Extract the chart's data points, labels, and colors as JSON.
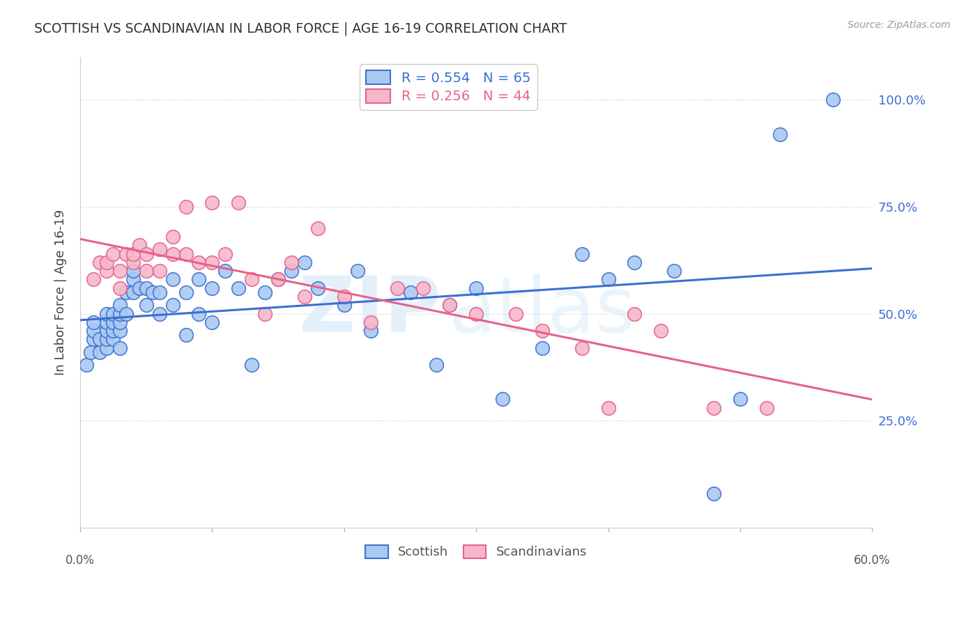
{
  "title": "SCOTTISH VS SCANDINAVIAN IN LABOR FORCE | AGE 16-19 CORRELATION CHART",
  "source": "Source: ZipAtlas.com",
  "ylabel": "In Labor Force | Age 16-19",
  "ytick_labels": [
    "25.0%",
    "50.0%",
    "75.0%",
    "100.0%"
  ],
  "ytick_values": [
    0.25,
    0.5,
    0.75,
    1.0
  ],
  "xmin": 0.0,
  "xmax": 0.6,
  "ymin": 0.0,
  "ymax": 1.1,
  "legend_blue_r": "0.554",
  "legend_blue_n": "65",
  "legend_pink_r": "0.256",
  "legend_pink_n": "44",
  "scatter_blue_color": "#aac9f0",
  "scatter_pink_color": "#f5b8ca",
  "line_blue_color": "#3b6fd4",
  "line_pink_color": "#e8608a",
  "scottish_x": [
    0.005,
    0.008,
    0.01,
    0.01,
    0.01,
    0.015,
    0.015,
    0.02,
    0.02,
    0.02,
    0.02,
    0.02,
    0.025,
    0.025,
    0.025,
    0.025,
    0.03,
    0.03,
    0.03,
    0.03,
    0.03,
    0.035,
    0.035,
    0.04,
    0.04,
    0.04,
    0.045,
    0.05,
    0.05,
    0.055,
    0.06,
    0.06,
    0.07,
    0.07,
    0.08,
    0.08,
    0.09,
    0.09,
    0.1,
    0.1,
    0.11,
    0.12,
    0.13,
    0.14,
    0.15,
    0.16,
    0.17,
    0.18,
    0.2,
    0.21,
    0.22,
    0.25,
    0.27,
    0.28,
    0.3,
    0.32,
    0.35,
    0.38,
    0.4,
    0.42,
    0.45,
    0.48,
    0.5,
    0.53,
    0.57
  ],
  "scottish_y": [
    0.38,
    0.41,
    0.44,
    0.46,
    0.48,
    0.41,
    0.44,
    0.42,
    0.44,
    0.46,
    0.48,
    0.5,
    0.44,
    0.46,
    0.48,
    0.5,
    0.42,
    0.46,
    0.48,
    0.5,
    0.52,
    0.5,
    0.55,
    0.55,
    0.58,
    0.6,
    0.56,
    0.52,
    0.56,
    0.55,
    0.5,
    0.55,
    0.52,
    0.58,
    0.45,
    0.55,
    0.5,
    0.58,
    0.48,
    0.56,
    0.6,
    0.56,
    0.38,
    0.55,
    0.58,
    0.6,
    0.62,
    0.56,
    0.52,
    0.6,
    0.46,
    0.55,
    0.38,
    0.52,
    0.56,
    0.3,
    0.42,
    0.64,
    0.58,
    0.62,
    0.6,
    0.08,
    0.3,
    0.92,
    1.0
  ],
  "scandinavian_x": [
    0.01,
    0.015,
    0.02,
    0.02,
    0.025,
    0.03,
    0.03,
    0.035,
    0.04,
    0.04,
    0.045,
    0.05,
    0.05,
    0.06,
    0.06,
    0.07,
    0.07,
    0.08,
    0.08,
    0.09,
    0.1,
    0.1,
    0.11,
    0.12,
    0.13,
    0.14,
    0.15,
    0.16,
    0.17,
    0.18,
    0.2,
    0.22,
    0.24,
    0.26,
    0.28,
    0.3,
    0.33,
    0.35,
    0.38,
    0.4,
    0.42,
    0.44,
    0.48,
    0.52
  ],
  "scandinavian_y": [
    0.58,
    0.62,
    0.6,
    0.62,
    0.64,
    0.56,
    0.6,
    0.64,
    0.62,
    0.64,
    0.66,
    0.6,
    0.64,
    0.6,
    0.65,
    0.64,
    0.68,
    0.64,
    0.75,
    0.62,
    0.62,
    0.76,
    0.64,
    0.76,
    0.58,
    0.5,
    0.58,
    0.62,
    0.54,
    0.7,
    0.54,
    0.48,
    0.56,
    0.56,
    0.52,
    0.5,
    0.5,
    0.46,
    0.42,
    0.28,
    0.5,
    0.46,
    0.28,
    0.28
  ]
}
